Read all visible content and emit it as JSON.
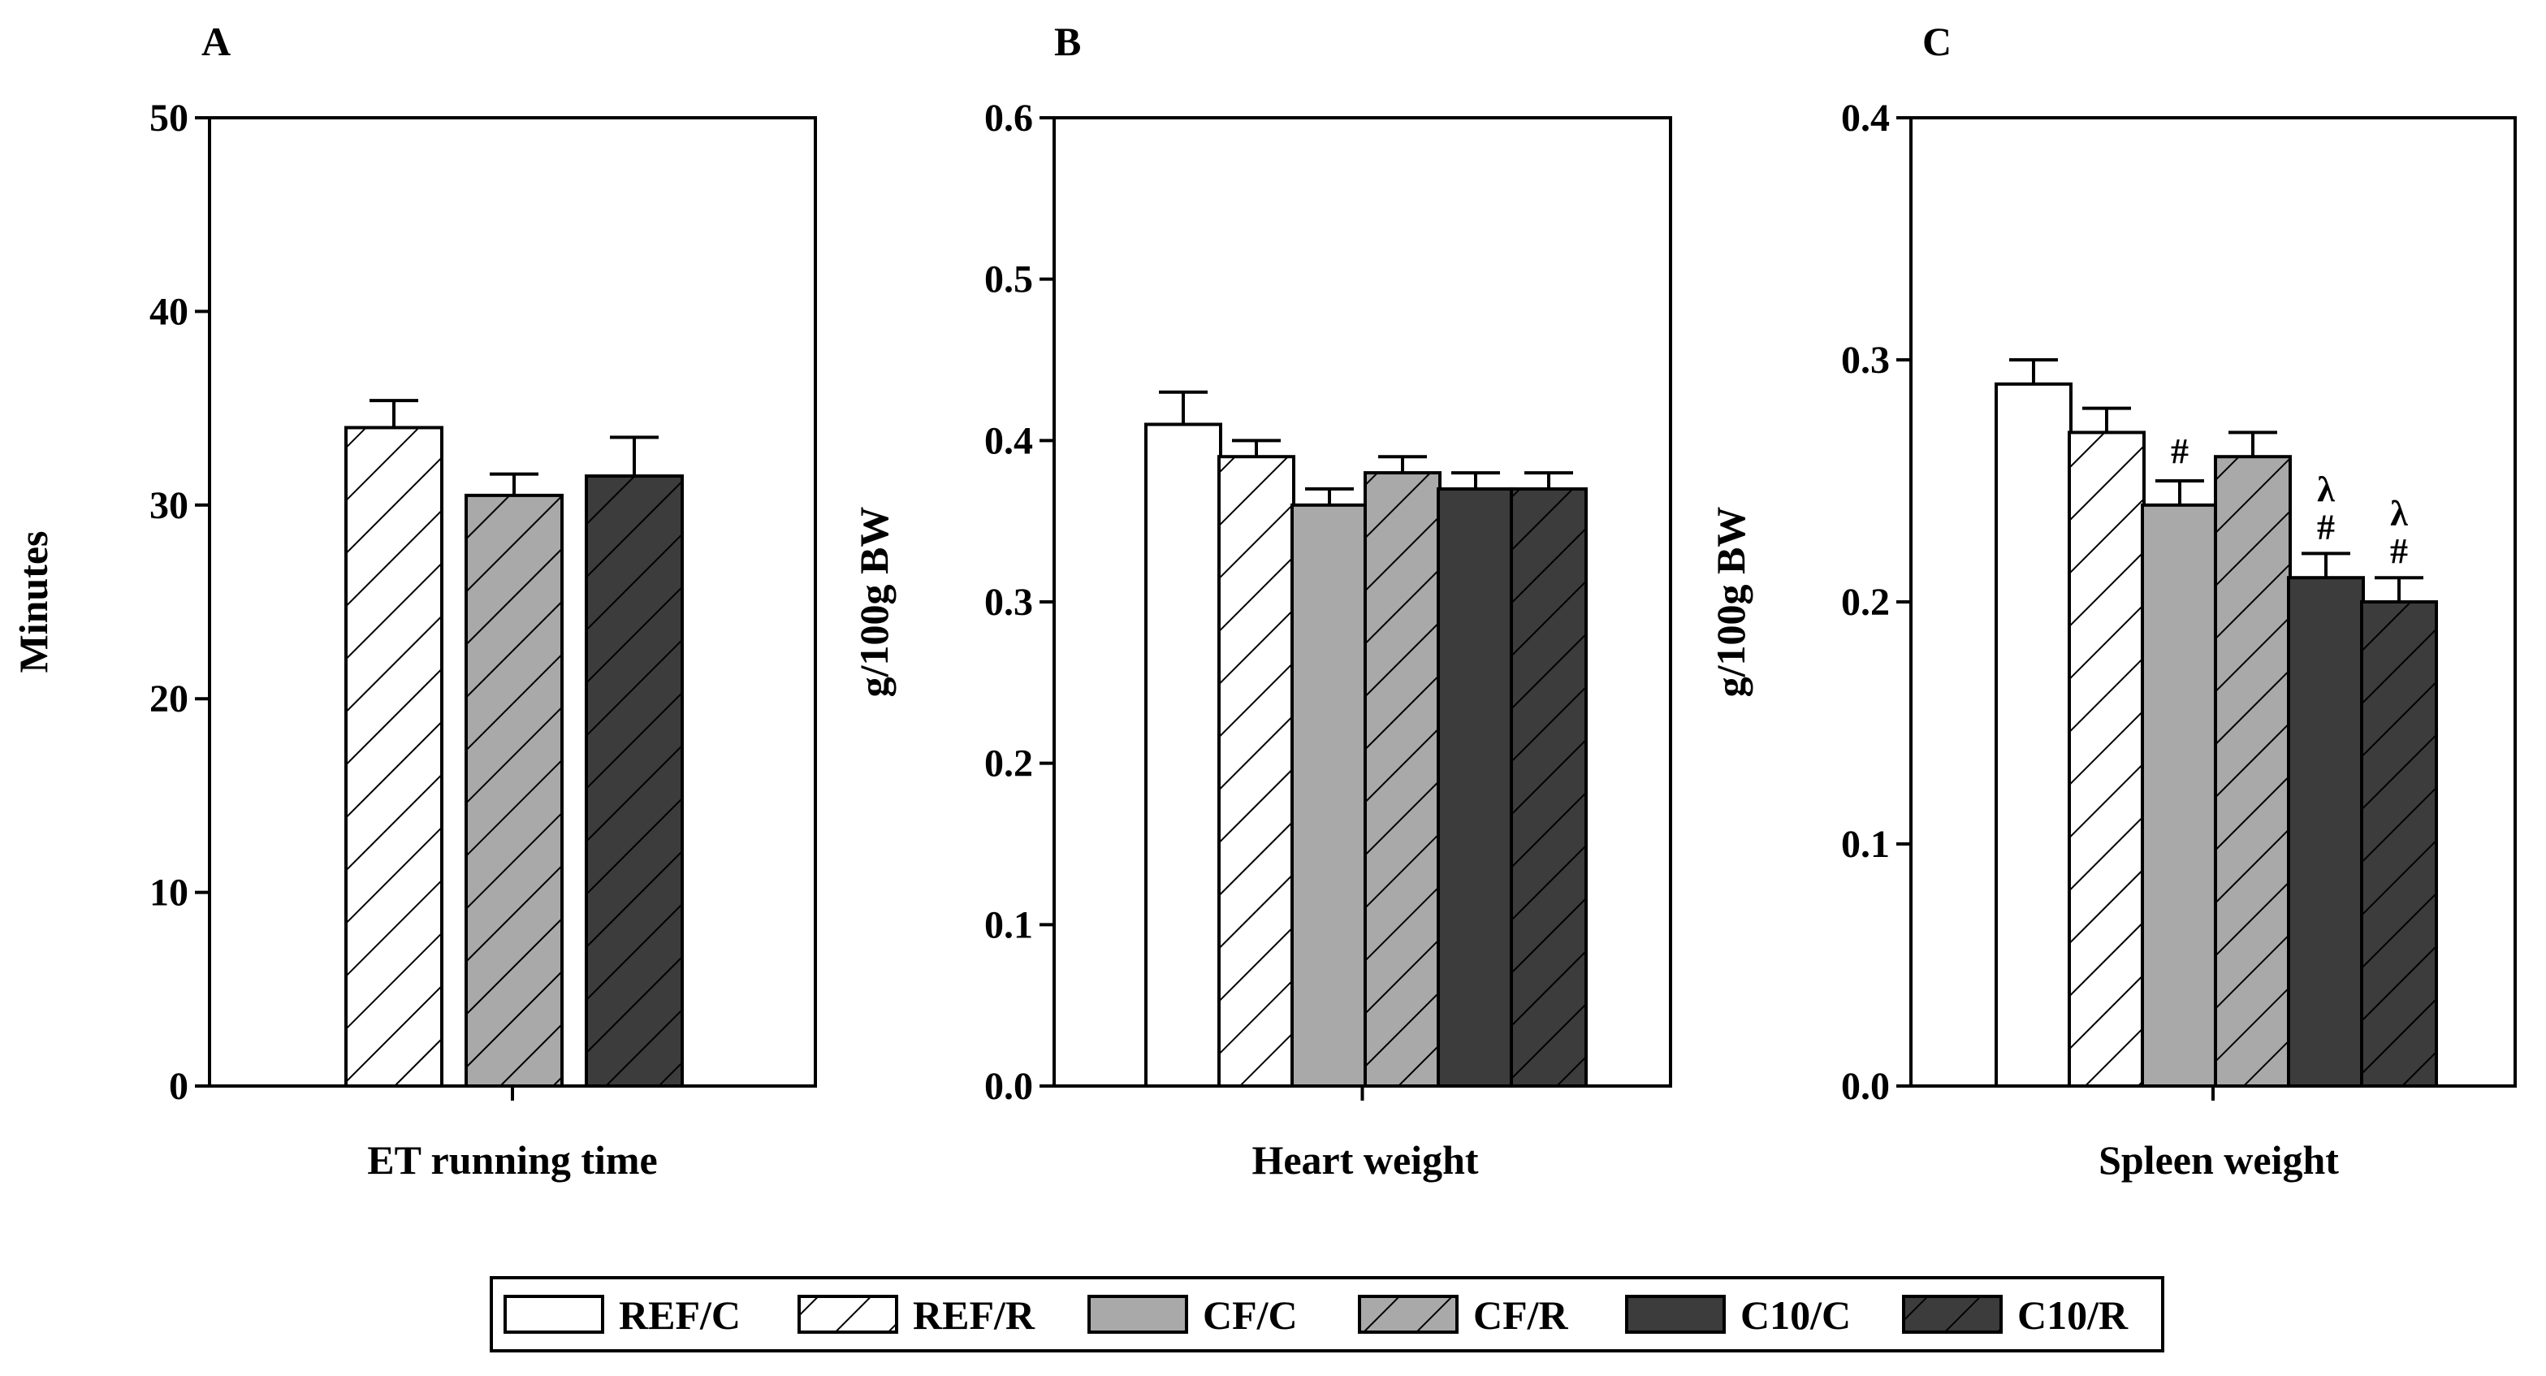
{
  "colors": {
    "white": "#ffffff",
    "light_gray": "#a9a9a9",
    "dark_gray": "#3c3c3c",
    "black": "#000000"
  },
  "legend": [
    {
      "label": "REF/C",
      "fill": "#ffffff",
      "hatch": false
    },
    {
      "label": "REF/R",
      "fill": "#ffffff",
      "hatch": true
    },
    {
      "label": "CF/C",
      "fill": "#a9a9a9",
      "hatch": false
    },
    {
      "label": "CF/R",
      "fill": "#a9a9a9",
      "hatch": true
    },
    {
      "label": "C10/C",
      "fill": "#3c3c3c",
      "hatch": false
    },
    {
      "label": "C10/R",
      "fill": "#3c3c3c",
      "hatch": true
    }
  ],
  "chart_data": [
    {
      "panel": "A",
      "type": "bar",
      "xlabel": "ET running time",
      "ylabel": "Minutes",
      "ylim": [
        0,
        50
      ],
      "yticks": [
        "0",
        "10",
        "20",
        "30",
        "40",
        "50"
      ],
      "series": [
        {
          "name": "REF/R",
          "value": 34.0,
          "error": 1.4,
          "annotation": ""
        },
        {
          "name": "CF/R",
          "value": 30.5,
          "error": 1.1,
          "annotation": ""
        },
        {
          "name": "C10/R",
          "value": 31.5,
          "error": 2.0,
          "annotation": ""
        }
      ]
    },
    {
      "panel": "B",
      "type": "bar",
      "xlabel": "Heart weight",
      "ylabel": "g/100g BW",
      "ylim": [
        0,
        0.6
      ],
      "yticks": [
        "0.0",
        "0.1",
        "0.2",
        "0.3",
        "0.4",
        "0.5",
        "0.6"
      ],
      "series": [
        {
          "name": "REF/C",
          "value": 0.41,
          "error": 0.02,
          "annotation": ""
        },
        {
          "name": "REF/R",
          "value": 0.39,
          "error": 0.01,
          "annotation": ""
        },
        {
          "name": "CF/C",
          "value": 0.36,
          "error": 0.01,
          "annotation": ""
        },
        {
          "name": "CF/R",
          "value": 0.38,
          "error": 0.01,
          "annotation": ""
        },
        {
          "name": "C10/C",
          "value": 0.37,
          "error": 0.01,
          "annotation": ""
        },
        {
          "name": "C10/R",
          "value": 0.37,
          "error": 0.01,
          "annotation": ""
        }
      ]
    },
    {
      "panel": "C",
      "type": "bar",
      "xlabel": "Spleen weight",
      "ylabel": "g/100g BW",
      "ylim": [
        0,
        0.4
      ],
      "yticks": [
        "0.0",
        "0.1",
        "0.2",
        "0.3",
        "0.4"
      ],
      "series": [
        {
          "name": "REF/C",
          "value": 0.29,
          "error": 0.01,
          "annotation": ""
        },
        {
          "name": "REF/R",
          "value": 0.27,
          "error": 0.01,
          "annotation": ""
        },
        {
          "name": "CF/C",
          "value": 0.24,
          "error": 0.01,
          "annotation": "#"
        },
        {
          "name": "CF/R",
          "value": 0.26,
          "error": 0.01,
          "annotation": ""
        },
        {
          "name": "C10/C",
          "value": 0.21,
          "error": 0.01,
          "annotation": "λ\n#"
        },
        {
          "name": "C10/R",
          "value": 0.2,
          "error": 0.01,
          "annotation": "λ\n#"
        }
      ]
    }
  ]
}
